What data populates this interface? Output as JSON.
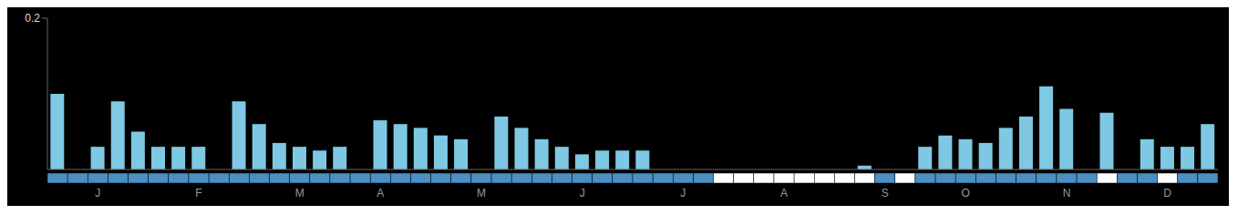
{
  "chart_data": {
    "type": "bar",
    "categories": [
      null,
      null,
      "J",
      null,
      null,
      null,
      null,
      "F",
      null,
      null,
      null,
      null,
      "M",
      null,
      null,
      null,
      "A",
      null,
      null,
      null,
      null,
      "M",
      null,
      null,
      null,
      null,
      "J",
      null,
      null,
      null,
      null,
      "J",
      null,
      null,
      null,
      null,
      "A",
      null,
      null,
      null,
      null,
      "S",
      null,
      null,
      null,
      "O",
      null,
      null,
      null,
      null,
      "N",
      null,
      null,
      null,
      null,
      "D",
      null,
      null
    ],
    "values": [
      0.1,
      0.0,
      0.03,
      0.09,
      0.05,
      0.03,
      0.03,
      0.03,
      0.0,
      0.09,
      0.06,
      0.035,
      0.03,
      0.025,
      0.03,
      0.0,
      0.065,
      0.06,
      0.055,
      0.045,
      0.04,
      0.0,
      0.07,
      0.055,
      0.04,
      0.03,
      0.02,
      0.025,
      0.025,
      0.025,
      0.0,
      0.0,
      0.0,
      0.0,
      0.0,
      0.0,
      0.0,
      0.0,
      0.0,
      0.0,
      0.005,
      0.0,
      0.0,
      0.03,
      0.045,
      0.04,
      0.035,
      0.055,
      0.07,
      0.11,
      0.08,
      0.0,
      0.075,
      0.0,
      0.04,
      0.03,
      0.03,
      0.06
    ],
    "color": "#7ec8e3",
    "ylim": [
      0,
      0.2
    ],
    "yticks": [
      0.2
    ],
    "presence": [
      1,
      1,
      1,
      1,
      1,
      1,
      1,
      1,
      1,
      1,
      1,
      1,
      1,
      1,
      1,
      1,
      1,
      1,
      1,
      1,
      1,
      1,
      1,
      1,
      1,
      1,
      1,
      1,
      1,
      1,
      1,
      1,
      1,
      0,
      0,
      0,
      0,
      0,
      0,
      0,
      0,
      1,
      0,
      1,
      1,
      1,
      1,
      1,
      1,
      1,
      1,
      1,
      0,
      1,
      1,
      0,
      1,
      1
    ],
    "presence_colors": [
      "#ffffff",
      "#4a90c4"
    ]
  }
}
